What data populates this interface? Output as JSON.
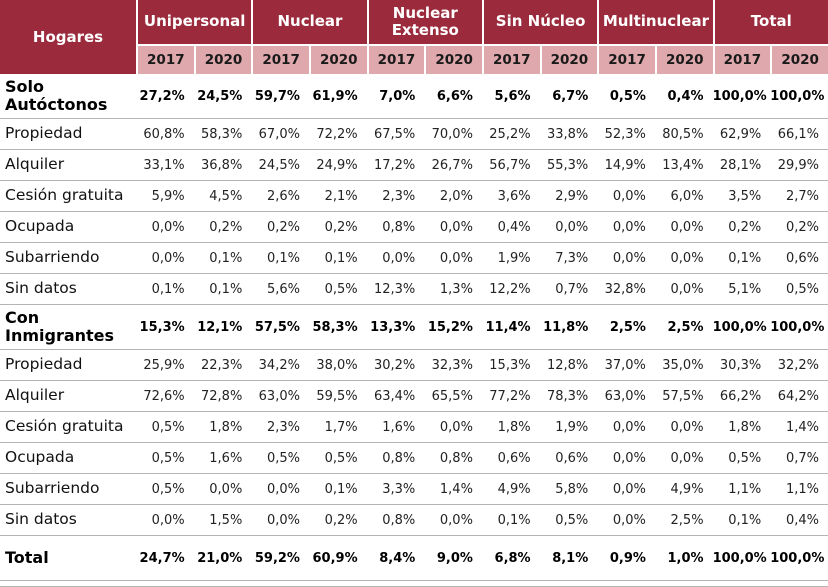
{
  "chart_data": {
    "type": "table",
    "corner_label": "Hogares",
    "column_groups": [
      "Unipersonal",
      "Nuclear",
      "Nuclear Extenso",
      "Sin Núcleo",
      "Multinuclear",
      "Total"
    ],
    "years": [
      "2017",
      "2020"
    ],
    "rows": [
      {
        "label": "Solo Autóctonos",
        "emphasis": true,
        "values": [
          "27,2%",
          "24,5%",
          "59,7%",
          "61,9%",
          "7,0%",
          "6,6%",
          "5,6%",
          "6,7%",
          "0,5%",
          "0,4%",
          "100,0%",
          "100,0%"
        ]
      },
      {
        "label": "Propiedad",
        "emphasis": false,
        "values": [
          "60,8%",
          "58,3%",
          "67,0%",
          "72,2%",
          "67,5%",
          "70,0%",
          "25,2%",
          "33,8%",
          "52,3%",
          "80,5%",
          "62,9%",
          "66,1%"
        ]
      },
      {
        "label": "Alquiler",
        "emphasis": false,
        "values": [
          "33,1%",
          "36,8%",
          "24,5%",
          "24,9%",
          "17,2%",
          "26,7%",
          "56,7%",
          "55,3%",
          "14,9%",
          "13,4%",
          "28,1%",
          "29,9%"
        ]
      },
      {
        "label": "Cesión gratuita",
        "emphasis": false,
        "values": [
          "5,9%",
          "4,5%",
          "2,6%",
          "2,1%",
          "2,3%",
          "2,0%",
          "3,6%",
          "2,9%",
          "0,0%",
          "6,0%",
          "3,5%",
          "2,7%"
        ]
      },
      {
        "label": "Ocupada",
        "emphasis": false,
        "values": [
          "0,0%",
          "0,2%",
          "0,2%",
          "0,2%",
          "0,8%",
          "0,0%",
          "0,4%",
          "0,0%",
          "0,0%",
          "0,0%",
          "0,2%",
          "0,2%"
        ]
      },
      {
        "label": "Subarriendo",
        "emphasis": false,
        "values": [
          "0,0%",
          "0,1%",
          "0,1%",
          "0,1%",
          "0,0%",
          "0,0%",
          "1,9%",
          "7,3%",
          "0,0%",
          "0,0%",
          "0,1%",
          "0,6%"
        ]
      },
      {
        "label": "Sin datos",
        "emphasis": false,
        "values": [
          "0,1%",
          "0,1%",
          "5,6%",
          "0,5%",
          "12,3%",
          "1,3%",
          "12,2%",
          "0,7%",
          "32,8%",
          "0,0%",
          "5,1%",
          "0,5%"
        ]
      },
      {
        "label": "Con Inmigrantes",
        "emphasis": true,
        "values": [
          "15,3%",
          "12,1%",
          "57,5%",
          "58,3%",
          "13,3%",
          "15,2%",
          "11,4%",
          "11,8%",
          "2,5%",
          "2,5%",
          "100,0%",
          "100,0%"
        ]
      },
      {
        "label": "Propiedad",
        "emphasis": false,
        "values": [
          "25,9%",
          "22,3%",
          "34,2%",
          "38,0%",
          "30,2%",
          "32,3%",
          "15,3%",
          "12,8%",
          "37,0%",
          "35,0%",
          "30,3%",
          "32,2%"
        ]
      },
      {
        "label": "Alquiler",
        "emphasis": false,
        "values": [
          "72,6%",
          "72,8%",
          "63,0%",
          "59,5%",
          "63,4%",
          "65,5%",
          "77,2%",
          "78,3%",
          "63,0%",
          "57,5%",
          "66,2%",
          "64,2%"
        ]
      },
      {
        "label": "Cesión gratuita",
        "emphasis": false,
        "values": [
          "0,5%",
          "1,8%",
          "2,3%",
          "1,7%",
          "1,6%",
          "0,0%",
          "1,8%",
          "1,9%",
          "0,0%",
          "0,0%",
          "1,8%",
          "1,4%"
        ]
      },
      {
        "label": "Ocupada",
        "emphasis": false,
        "values": [
          "0,5%",
          "1,6%",
          "0,5%",
          "0,5%",
          "0,8%",
          "0,8%",
          "0,6%",
          "0,6%",
          "0,0%",
          "0,0%",
          "0,5%",
          "0,7%"
        ]
      },
      {
        "label": "Subarriendo",
        "emphasis": false,
        "values": [
          "0,5%",
          "0,0%",
          "0,0%",
          "0,1%",
          "3,3%",
          "1,4%",
          "4,9%",
          "5,8%",
          "0,0%",
          "4,9%",
          "1,1%",
          "1,1%"
        ]
      },
      {
        "label": "Sin datos",
        "emphasis": false,
        "values": [
          "0,0%",
          "1,5%",
          "0,0%",
          "0,2%",
          "0,8%",
          "0,0%",
          "0,1%",
          "0,5%",
          "0,0%",
          "2,5%",
          "0,1%",
          "0,4%"
        ]
      },
      {
        "label": "Total",
        "emphasis": true,
        "values": [
          "24,7%",
          "21,0%",
          "59,2%",
          "60,9%",
          "8,4%",
          "9,0%",
          "6,8%",
          "8,1%",
          "0,9%",
          "1,0%",
          "100,0%",
          "100,0%"
        ]
      }
    ]
  },
  "colors": {
    "header_bg": "#9B2B3C",
    "subheader_bg": "#DEA8AC",
    "header_text": "#FFFFFF",
    "grid_line": "#B5B5B5",
    "background": "#FFFFFF"
  }
}
